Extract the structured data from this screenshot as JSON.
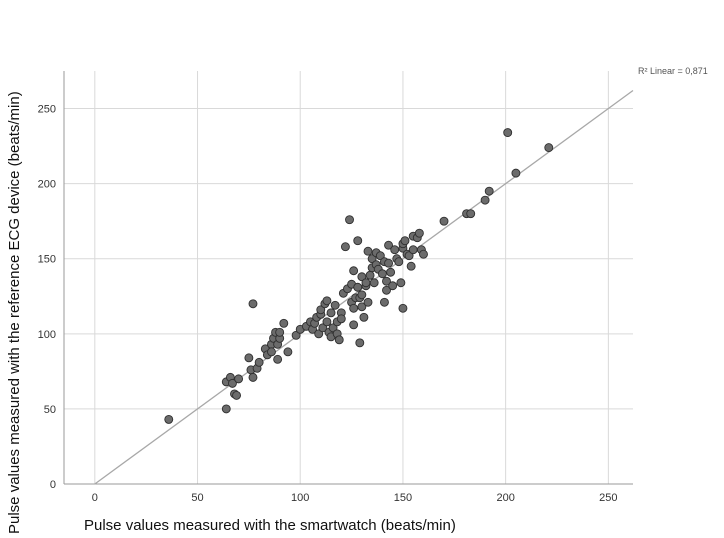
{
  "chart_data": {
    "type": "scatter",
    "xlabel": "Pulse values measured with the smartwatch (beats/min)",
    "ylabel": "Pulse values measured  with the reference ECG device (beats/min)",
    "xlim": [
      -15,
      262
    ],
    "ylim": [
      0,
      275
    ],
    "x_ticks": [
      "0",
      "50",
      "100",
      "150",
      "200",
      "250"
    ],
    "y_ticks": [
      "0",
      "50",
      "100",
      "150",
      "200",
      "250"
    ],
    "grid": true,
    "fit_line_label": "R² Linear = 0,871",
    "fit_line": {
      "slope": 1.0,
      "intercept": 0,
      "x_range": [
        0,
        262
      ]
    },
    "colors": {
      "point_fill": "#6b6b6b",
      "point_stroke": "#2f2f2f",
      "grid": "#d9d9d9",
      "fit_line": "#a8a8a8",
      "axis": "#9a9a9a"
    },
    "series": [
      {
        "points": [
          [
            36,
            43
          ],
          [
            64,
            50
          ],
          [
            64,
            68
          ],
          [
            66,
            71
          ],
          [
            67,
            67
          ],
          [
            68,
            60
          ],
          [
            69,
            59
          ],
          [
            70,
            70
          ],
          [
            75,
            84
          ],
          [
            76,
            76
          ],
          [
            77,
            71
          ],
          [
            77,
            120
          ],
          [
            79,
            77
          ],
          [
            80,
            81
          ],
          [
            83,
            90
          ],
          [
            84,
            86
          ],
          [
            86,
            93
          ],
          [
            86,
            88
          ],
          [
            87,
            97
          ],
          [
            88,
            101
          ],
          [
            89,
            83
          ],
          [
            89,
            93
          ],
          [
            90,
            97
          ],
          [
            90,
            101
          ],
          [
            92,
            107
          ],
          [
            94,
            88
          ],
          [
            98,
            99
          ],
          [
            100,
            103
          ],
          [
            103,
            105
          ],
          [
            105,
            108
          ],
          [
            106,
            103
          ],
          [
            107,
            107
          ],
          [
            108,
            111
          ],
          [
            109,
            100
          ],
          [
            110,
            113
          ],
          [
            110,
            116
          ],
          [
            111,
            104
          ],
          [
            112,
            120
          ],
          [
            113,
            108
          ],
          [
            113,
            122
          ],
          [
            114,
            101
          ],
          [
            115,
            114
          ],
          [
            115,
            98
          ],
          [
            116,
            104
          ],
          [
            117,
            119
          ],
          [
            118,
            100
          ],
          [
            118,
            108
          ],
          [
            119,
            96
          ],
          [
            120,
            114
          ],
          [
            120,
            110
          ],
          [
            121,
            127
          ],
          [
            122,
            158
          ],
          [
            123,
            130
          ],
          [
            124,
            176
          ],
          [
            125,
            121
          ],
          [
            125,
            133
          ],
          [
            126,
            142
          ],
          [
            126,
            106
          ],
          [
            126,
            117
          ],
          [
            127,
            124
          ],
          [
            128,
            131
          ],
          [
            128,
            162
          ],
          [
            129,
            94
          ],
          [
            129,
            124
          ],
          [
            130,
            126
          ],
          [
            130,
            118
          ],
          [
            130,
            138
          ],
          [
            131,
            111
          ],
          [
            132,
            132
          ],
          [
            132,
            134
          ],
          [
            133,
            155
          ],
          [
            133,
            121
          ],
          [
            134,
            139
          ],
          [
            135,
            144
          ],
          [
            135,
            150
          ],
          [
            136,
            134
          ],
          [
            137,
            154
          ],
          [
            137,
            146
          ],
          [
            138,
            143
          ],
          [
            139,
            152
          ],
          [
            140,
            140
          ],
          [
            141,
            148
          ],
          [
            141,
            121
          ],
          [
            142,
            135
          ],
          [
            142,
            129
          ],
          [
            143,
            159
          ],
          [
            143,
            147
          ],
          [
            144,
            141
          ],
          [
            145,
            132
          ],
          [
            146,
            156
          ],
          [
            147,
            150
          ],
          [
            148,
            148
          ],
          [
            149,
            134
          ],
          [
            150,
            157
          ],
          [
            150,
            160
          ],
          [
            150,
            117
          ],
          [
            151,
            162
          ],
          [
            152,
            153
          ],
          [
            153,
            152
          ],
          [
            154,
            145
          ],
          [
            155,
            156
          ],
          [
            155,
            165
          ],
          [
            157,
            164
          ],
          [
            158,
            167
          ],
          [
            159,
            156
          ],
          [
            160,
            153
          ],
          [
            170,
            175
          ],
          [
            181,
            180
          ],
          [
            183,
            180
          ],
          [
            190,
            189
          ],
          [
            192,
            195
          ],
          [
            201,
            234
          ],
          [
            205,
            207
          ],
          [
            221,
            224
          ]
        ]
      }
    ]
  }
}
